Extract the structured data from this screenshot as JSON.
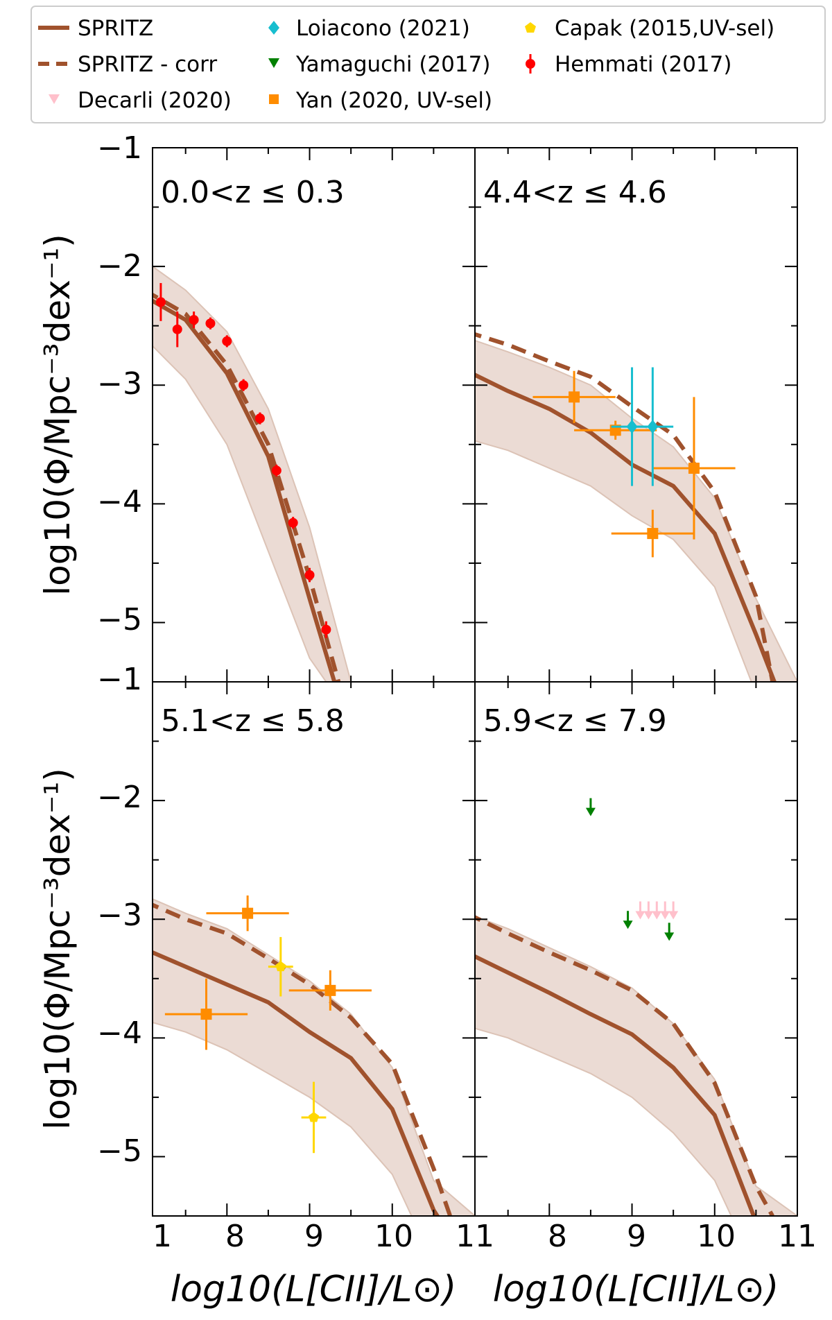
{
  "chart_data": {
    "type": "line",
    "x_label": "log10(L[CII]/L⊙)",
    "y_label": "log10(Φ/Mpc⁻³dex⁻¹)",
    "xlim": [
      7.1,
      11.0
    ],
    "ylim": [
      -5.5,
      -1.0
    ],
    "x_tick_labels": [
      "1",
      "8",
      "9",
      "10",
      "11"
    ],
    "x_tick_labels_right": [
      "11",
      "8",
      "9",
      "10",
      "11"
    ],
    "y_tick_labels_top": [
      "−1",
      "−2",
      "−3",
      "−4",
      "−5"
    ],
    "y_tick_labels_bottom": [
      "−1",
      "−2",
      "−3",
      "−4",
      "−5"
    ],
    "legend": [
      {
        "label": "SPRITZ",
        "marker": "solid-line",
        "color": "#a0522d"
      },
      {
        "label": "SPRITZ - corr",
        "marker": "dashed-line",
        "color": "#a0522d"
      },
      {
        "label": "Decarli (2020)",
        "marker": "triangle-down",
        "color": "#ffc0cb"
      },
      {
        "label": "Loiacono (2021)",
        "marker": "diamond",
        "color": "#17becf"
      },
      {
        "label": "Yamaguchi (2017)",
        "marker": "triangle-down",
        "color": "#008000"
      },
      {
        "label": "Yan (2020, UV-sel)",
        "marker": "square",
        "color": "#ff8c00"
      },
      {
        "label": "Capak (2015,UV-sel)",
        "marker": "pentagon",
        "color": "#ffd700"
      },
      {
        "label": "Hemmati (2017)",
        "marker": "circle-errorbar",
        "color": "#ff0000"
      }
    ],
    "panels": [
      {
        "title": "0.0<z ≤ 0.3",
        "spritz": {
          "x": [
            7.0,
            7.5,
            8.0,
            8.5,
            9.0,
            9.3
          ],
          "y": [
            -2.25,
            -2.45,
            -2.9,
            -3.6,
            -4.8,
            -5.5
          ]
        },
        "spritz_upper": {
          "x": [
            7.0,
            7.5,
            8.0,
            8.5,
            9.0,
            9.5
          ],
          "y": [
            -1.95,
            -2.2,
            -2.55,
            -3.2,
            -4.2,
            -5.5
          ]
        },
        "spritz_lower": {
          "x": [
            7.0,
            7.5,
            8.0,
            8.5,
            9.0,
            9.2
          ],
          "y": [
            -2.6,
            -2.95,
            -3.5,
            -4.4,
            -5.3,
            -5.5
          ]
        },
        "spritz_corr": {
          "x": [
            7.0,
            7.5,
            8.0,
            8.5,
            9.0,
            9.35
          ],
          "y": [
            -2.2,
            -2.4,
            -2.83,
            -3.5,
            -4.62,
            -5.5
          ]
        },
        "hemmati": [
          {
            "x": 7.2,
            "y": -2.3,
            "err": 0.16
          },
          {
            "x": 7.4,
            "y": -2.53,
            "err": 0.15
          },
          {
            "x": 7.6,
            "y": -2.45,
            "err": 0.07
          },
          {
            "x": 7.8,
            "y": -2.48,
            "err": 0.05
          },
          {
            "x": 8.0,
            "y": -2.63,
            "err": 0.05
          },
          {
            "x": 8.2,
            "y": -3.0,
            "err": 0.05
          },
          {
            "x": 8.4,
            "y": -3.28,
            "err": 0.05
          },
          {
            "x": 8.6,
            "y": -3.72,
            "err": 0.05
          },
          {
            "x": 8.8,
            "y": -4.16,
            "err": 0.05
          },
          {
            "x": 9.0,
            "y": -4.6,
            "err": 0.06
          },
          {
            "x": 9.2,
            "y": -5.06,
            "err": 0.07
          }
        ]
      },
      {
        "title": "4.4<z ≤ 4.6",
        "spritz": {
          "x": [
            7.0,
            7.5,
            8.0,
            8.5,
            9.0,
            9.5,
            10.0,
            10.5,
            11.0
          ],
          "y": [
            -2.88,
            -3.05,
            -3.2,
            -3.4,
            -3.67,
            -3.85,
            -4.25,
            -5.1,
            -6.0
          ]
        },
        "spritz_upper": {
          "x": [
            7.0,
            7.5,
            8.0,
            8.5,
            9.0,
            9.5,
            10.0,
            10.5,
            11.0
          ],
          "y": [
            -2.6,
            -2.72,
            -2.85,
            -3.0,
            -3.28,
            -3.52,
            -3.95,
            -4.8,
            -5.5
          ]
        },
        "spritz_lower": {
          "x": [
            7.0,
            7.5,
            8.0,
            8.5,
            9.0,
            9.5,
            10.0,
            10.5,
            11.0
          ],
          "y": [
            -3.45,
            -3.55,
            -3.7,
            -3.85,
            -4.1,
            -4.3,
            -4.7,
            -5.6,
            -6.0
          ]
        },
        "spritz_corr": {
          "x": [
            7.0,
            7.5,
            8.0,
            8.5,
            9.0,
            9.5,
            10.0,
            10.5,
            10.7
          ],
          "y": [
            -2.55,
            -2.66,
            -2.8,
            -2.93,
            -3.18,
            -3.42,
            -3.9,
            -4.78,
            -5.5
          ]
        },
        "yan": [
          {
            "x": 8.3,
            "y": -3.1,
            "xerr": 0.5,
            "yerr": 0.22
          },
          {
            "x": 8.8,
            "y": -3.38,
            "xerr": 0.5,
            "yerr": 0.08
          },
          {
            "x": 9.25,
            "y": -4.25,
            "xerr": 0.5,
            "yerr": 0.2
          },
          {
            "x": 9.75,
            "y": -3.7,
            "xerr": 0.5,
            "yerr": 0.6
          }
        ],
        "loiacono": [
          {
            "x": 9.0,
            "y": -3.35,
            "err": 0.5,
            "xerr": 0.25
          },
          {
            "x": 9.25,
            "y": -3.35,
            "err": 0.5,
            "xerr": 0.25
          }
        ]
      },
      {
        "title": "5.1<z ≤ 5.8",
        "spritz": {
          "x": [
            7.0,
            7.5,
            8.0,
            8.5,
            9.0,
            9.5,
            10.0,
            10.5,
            11.0
          ],
          "y": [
            -3.25,
            -3.4,
            -3.55,
            -3.7,
            -3.95,
            -4.17,
            -4.6,
            -5.45,
            -6.0
          ]
        },
        "spritz_upper": {
          "x": [
            7.0,
            7.5,
            8.0,
            8.5,
            9.0,
            9.5,
            10.0,
            10.5,
            11.0
          ],
          "y": [
            -2.8,
            -2.95,
            -3.08,
            -3.3,
            -3.52,
            -3.8,
            -4.25,
            -5.2,
            -5.5
          ]
        },
        "spritz_lower": {
          "x": [
            7.0,
            7.5,
            8.0,
            8.5,
            9.0,
            9.5,
            10.0,
            10.5,
            11.0
          ],
          "y": [
            -3.85,
            -3.95,
            -4.1,
            -4.3,
            -4.5,
            -4.75,
            -5.15,
            -5.9,
            -6.0
          ]
        },
        "spritz_corr": {
          "x": [
            7.0,
            7.5,
            8.0,
            8.5,
            9.0,
            9.5,
            10.0,
            10.5,
            10.7
          ],
          "y": [
            -2.85,
            -3.0,
            -3.12,
            -3.33,
            -3.55,
            -3.83,
            -4.22,
            -5.1,
            -5.5
          ]
        },
        "yan": [
          {
            "x": 7.75,
            "y": -3.8,
            "xerr": 0.5,
            "yerr": 0.3
          },
          {
            "x": 8.25,
            "y": -2.95,
            "xerr": 0.5,
            "yerr": 0.15
          },
          {
            "x": 9.25,
            "y": -3.6,
            "xerr": 0.5,
            "yerr": 0.17
          }
        ],
        "capak": [
          {
            "x": 8.65,
            "y": -3.4,
            "xerr": 0.15,
            "yerr": 0.25
          },
          {
            "x": 9.05,
            "y": -4.67,
            "xerr": 0.15,
            "yerr": 0.3
          }
        ]
      },
      {
        "title": "5.9<z ≤ 7.9",
        "spritz": {
          "x": [
            7.0,
            7.5,
            8.0,
            8.5,
            9.0,
            9.5,
            10.0,
            10.5,
            11.0
          ],
          "y": [
            -3.28,
            -3.45,
            -3.62,
            -3.8,
            -3.97,
            -4.25,
            -4.65,
            -5.55,
            -6.0
          ]
        },
        "spritz_upper": {
          "x": [
            7.0,
            7.5,
            8.0,
            8.5,
            9.0,
            9.5,
            10.0,
            10.5,
            11.0
          ],
          "y": [
            -2.95,
            -3.08,
            -3.24,
            -3.4,
            -3.58,
            -3.88,
            -4.35,
            -5.25,
            -5.5
          ]
        },
        "spritz_lower": {
          "x": [
            7.0,
            7.5,
            8.0,
            8.5,
            9.0,
            9.5,
            10.0,
            10.5,
            11.0
          ],
          "y": [
            -3.9,
            -4.0,
            -4.15,
            -4.3,
            -4.5,
            -4.8,
            -5.2,
            -5.95,
            -6.0
          ]
        },
        "spritz_corr": {
          "x": [
            7.0,
            7.5,
            8.0,
            8.5,
            9.0,
            9.5,
            10.0,
            10.5,
            10.7
          ],
          "y": [
            -2.95,
            -3.12,
            -3.28,
            -3.43,
            -3.6,
            -3.88,
            -4.38,
            -5.25,
            -5.5
          ]
        },
        "yamaguchi": [
          {
            "x": 8.5,
            "y": -2.05
          },
          {
            "x": 8.95,
            "y": -3.0
          },
          {
            "x": 9.45,
            "y": -3.1
          }
        ],
        "decarli": [
          {
            "x": 9.1,
            "y": -2.92
          },
          {
            "x": 9.2,
            "y": -2.92
          },
          {
            "x": 9.3,
            "y": -2.92
          },
          {
            "x": 9.4,
            "y": -2.92
          },
          {
            "x": 9.5,
            "y": -2.92
          }
        ]
      }
    ]
  }
}
